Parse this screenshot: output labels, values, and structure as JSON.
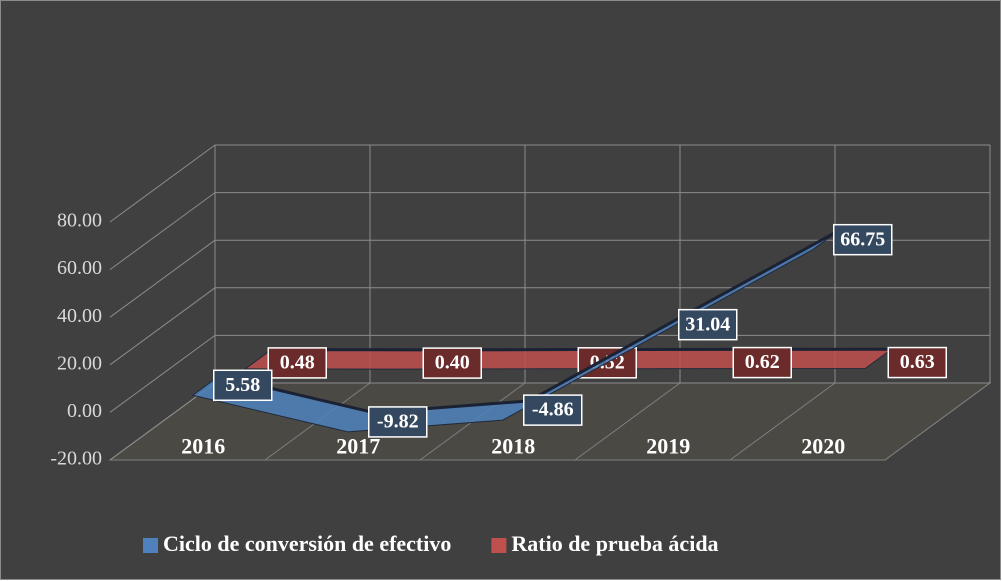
{
  "chart_data": {
    "type": "line3d",
    "categories": [
      "2016",
      "2017",
      "2018",
      "2019",
      "2020"
    ],
    "series": [
      {
        "name": "Ciclo de conversión de efectivo",
        "color": "#4f81bd",
        "values": [
          5.58,
          -9.82,
          -4.86,
          31.04,
          66.75
        ]
      },
      {
        "name": "Ratio de prueba ácida",
        "color": "#c0504d",
        "values": [
          0.48,
          0.4,
          0.52,
          0.62,
          0.63
        ],
        "value_labels": [
          "0.48",
          "0.40",
          "0.52",
          "0.62",
          "0.63"
        ]
      }
    ],
    "ylim": [
      -20,
      80
    ],
    "yticks": [
      {
        "value": -20,
        "label": "-20.00"
      },
      {
        "value": 0,
        "label": "0.00"
      },
      {
        "value": 20,
        "label": "20.00"
      },
      {
        "value": 40,
        "label": "40.00"
      },
      {
        "value": 60,
        "label": "60.00"
      },
      {
        "value": 80,
        "label": "80.00"
      }
    ],
    "grid": true,
    "legend": "bottom"
  }
}
